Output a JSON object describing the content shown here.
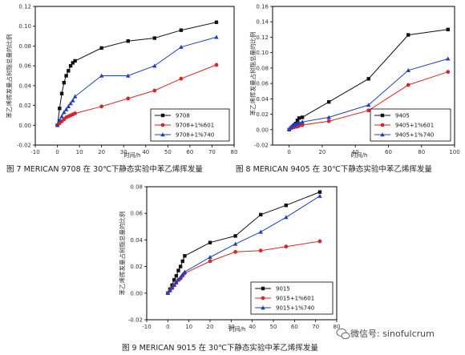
{
  "chart_data": [
    {
      "type": "line",
      "caption": "图 7 MERICAN 9708 在 30℃下静态实验中苯乙烯挥发量",
      "xlabel": "时间/h",
      "ylabel": "苯乙烯挥发量占树脂总量的比例",
      "xlim": [
        -10,
        80
      ],
      "ylim": [
        -0.02,
        0.12
      ],
      "xticks": [
        -10,
        0,
        10,
        20,
        30,
        40,
        50,
        60,
        70,
        80
      ],
      "yticks": [
        -0.02,
        0.0,
        0.02,
        0.04,
        0.06,
        0.08,
        0.1,
        0.12
      ],
      "ytick_labels": [
        "-0.02",
        "0.00",
        "0.02",
        "0.04",
        "0.06",
        "0.08",
        "0.10",
        "0.12"
      ],
      "series": [
        {
          "name": "9708",
          "color": "#111111",
          "marker": "square",
          "x": [
            0,
            1,
            2,
            3,
            4,
            5,
            6,
            7,
            8,
            20,
            32,
            44,
            56,
            72
          ],
          "y": [
            0,
            0.017,
            0.032,
            0.043,
            0.05,
            0.055,
            0.06,
            0.063,
            0.065,
            0.078,
            0.085,
            0.088,
            0.096,
            0.104
          ]
        },
        {
          "name": "9708+1%601",
          "color": "#d62728",
          "marker": "circle",
          "x": [
            0,
            1,
            2,
            3,
            4,
            5,
            6,
            7,
            8,
            20,
            32,
            44,
            56,
            72
          ],
          "y": [
            0,
            0.002,
            0.004,
            0.006,
            0.008,
            0.009,
            0.01,
            0.011,
            0.012,
            0.019,
            0.027,
            0.035,
            0.047,
            0.061
          ]
        },
        {
          "name": "9708+1%740",
          "color": "#1f3fbf",
          "marker": "triangle",
          "x": [
            0,
            1,
            2,
            3,
            4,
            5,
            6,
            7,
            8,
            20,
            32,
            44,
            56,
            72
          ],
          "y": [
            0,
            0.005,
            0.009,
            0.013,
            0.016,
            0.019,
            0.022,
            0.025,
            0.029,
            0.05,
            0.05,
            0.06,
            0.079,
            0.089
          ]
        }
      ],
      "legend_position": "bottom-right",
      "grid": false
    },
    {
      "type": "line",
      "caption": "图 8 MERICAN 9405 在 30℃下静态实验中苯乙烯挥发量",
      "xlabel": "时间/h",
      "ylabel": "苯乙烯挥发量占树脂总量的比例",
      "xlim": [
        -10,
        100
      ],
      "ylim": [
        -0.02,
        0.16
      ],
      "xticks": [
        0,
        20,
        40,
        60,
        80,
        100
      ],
      "yticks": [
        -0.02,
        0.0,
        0.02,
        0.04,
        0.06,
        0.08,
        0.1,
        0.12,
        0.14,
        0.16
      ],
      "ytick_labels": [
        "-0.02",
        "0.00",
        "0.02",
        "0.04",
        "0.06",
        "0.08",
        "0.10",
        "0.12",
        "0.14",
        "0.16"
      ],
      "series": [
        {
          "name": "9405",
          "color": "#111111",
          "marker": "square",
          "x": [
            0,
            1,
            2,
            3,
            4,
            5,
            6,
            8,
            24,
            48,
            72,
            96
          ],
          "y": [
            0,
            0.002,
            0.004,
            0.006,
            0.008,
            0.012,
            0.015,
            0.016,
            0.036,
            0.066,
            0.123,
            0.13
          ]
        },
        {
          "name": "9405+1%601",
          "color": "#d62728",
          "marker": "circle",
          "x": [
            0,
            1,
            2,
            3,
            4,
            5,
            6,
            8,
            24,
            48,
            72,
            96
          ],
          "y": [
            0,
            0.002,
            0.003,
            0.003,
            0.004,
            0.004,
            0.005,
            0.006,
            0.011,
            0.025,
            0.058,
            0.075
          ]
        },
        {
          "name": "9405+1%740",
          "color": "#1f3fbf",
          "marker": "triangle",
          "x": [
            0,
            1,
            2,
            3,
            4,
            5,
            6,
            8,
            24,
            48,
            72,
            96
          ],
          "y": [
            0,
            0.003,
            0.005,
            0.006,
            0.007,
            0.008,
            0.009,
            0.01,
            0.016,
            0.032,
            0.077,
            0.092
          ]
        }
      ],
      "legend_position": "bottom-right",
      "grid": false
    },
    {
      "type": "line",
      "caption": "图 9 MERICAN 9015 在 30℃下静态实验中苯乙烯挥发量",
      "xlabel": "时间/h",
      "ylabel": "苯乙烯挥发量占树脂总量的比例",
      "xlim": [
        -10,
        80
      ],
      "ylim": [
        -0.02,
        0.08
      ],
      "xticks": [
        -10,
        0,
        10,
        20,
        30,
        40,
        50,
        60,
        70,
        80
      ],
      "yticks": [
        -0.02,
        0.0,
        0.02,
        0.04,
        0.06,
        0.08
      ],
      "ytick_labels": [
        "-0.02",
        "0.00",
        "0.02",
        "0.04",
        "0.06",
        "0.08"
      ],
      "series": [
        {
          "name": "9015",
          "color": "#111111",
          "marker": "square",
          "x": [
            0,
            1,
            2,
            3,
            4,
            5,
            6,
            7,
            8,
            20,
            32,
            44,
            56,
            72
          ],
          "y": [
            0,
            0.003,
            0.006,
            0.01,
            0.013,
            0.017,
            0.02,
            0.024,
            0.028,
            0.038,
            0.043,
            0.059,
            0.066,
            0.076
          ]
        },
        {
          "name": "9015+1%601",
          "color": "#d62728",
          "marker": "circle",
          "x": [
            0,
            1,
            2,
            3,
            4,
            5,
            6,
            7,
            8,
            20,
            32,
            44,
            56,
            72
          ],
          "y": [
            0,
            0.002,
            0.004,
            0.006,
            0.008,
            0.01,
            0.011,
            0.013,
            0.015,
            0.024,
            0.031,
            0.032,
            0.035,
            0.039
          ]
        },
        {
          "name": "9015+1%740",
          "color": "#1f3fbf",
          "marker": "triangle",
          "x": [
            0,
            1,
            2,
            3,
            4,
            5,
            6,
            7,
            8,
            20,
            32,
            44,
            56,
            72
          ],
          "y": [
            0,
            0.002,
            0.004,
            0.006,
            0.008,
            0.01,
            0.012,
            0.014,
            0.016,
            0.027,
            0.037,
            0.046,
            0.057,
            0.073
          ]
        }
      ],
      "legend_position": "bottom-right",
      "grid": false
    }
  ],
  "watermark": {
    "icon": "wechat-icon",
    "text": "微信号: sinofulcrum"
  }
}
